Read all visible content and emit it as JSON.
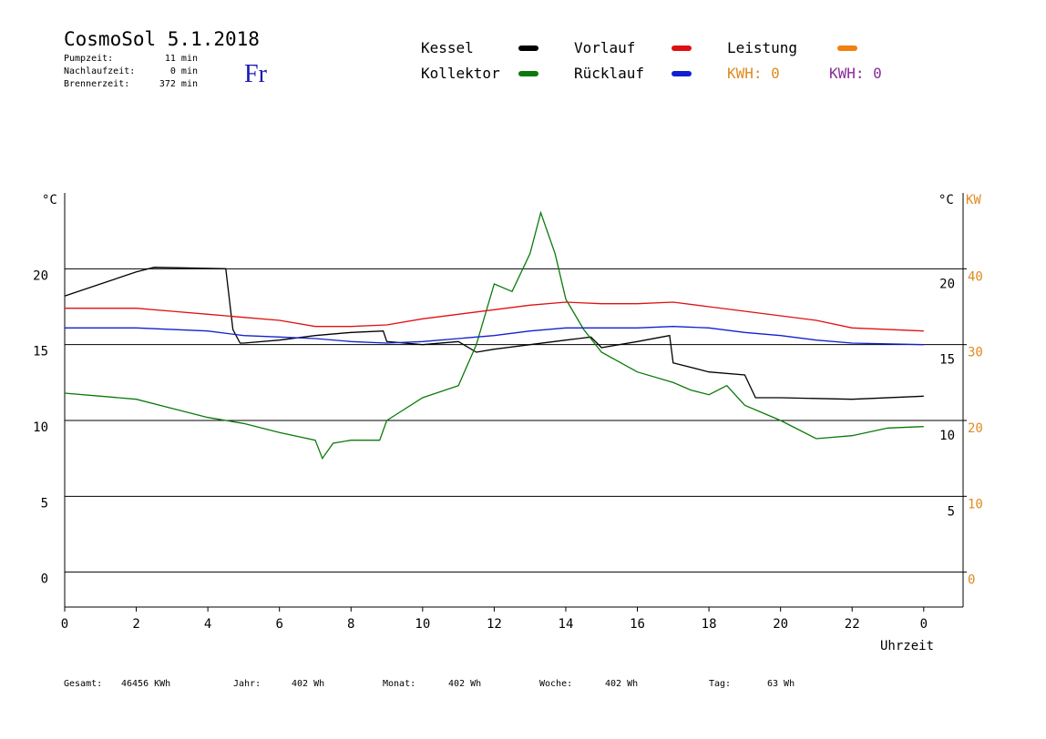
{
  "chart_data": {
    "type": "line",
    "title": "CosmoSol 5.1.2018",
    "weekday": "Fr",
    "stats": [
      {
        "label": "Pumpzeit:",
        "value": "11 min"
      },
      {
        "label": "Nachlaufzeit:",
        "value": "0 min"
      },
      {
        "label": "Brennerzeit:",
        "value": "372 min"
      }
    ],
    "ylabel": "°C",
    "y2label_celsius": "°C",
    "y2label": "KW",
    "xlabel": "Uhrzeit",
    "xlim": [
      0,
      25.1
    ],
    "xticks": [
      0,
      2,
      4,
      6,
      8,
      10,
      12,
      14,
      16,
      18,
      20,
      22,
      {
        "value": 24,
        "label": "0"
      }
    ],
    "ylim": [
      -2.3,
      25
    ],
    "yticks": [
      0,
      5,
      10,
      15,
      20
    ],
    "y2lim": [
      -4.6,
      50
    ],
    "y2ticks": [
      0,
      10,
      20,
      30,
      40
    ],
    "y2color": "#e08a1e",
    "grid": true,
    "series": [
      {
        "name": "Kessel",
        "color": "#000000",
        "x": [
          0,
          1,
          2,
          2.5,
          4.5,
          4.7,
          4.9,
          5,
          6,
          7,
          8,
          8.9,
          9,
          10,
          11,
          11.5,
          12,
          13,
          14,
          14.7,
          15,
          16,
          16.9,
          17,
          18,
          19,
          19.3,
          20,
          22,
          24
        ],
        "values": [
          18.2,
          19,
          19.8,
          20.1,
          20,
          16,
          15.1,
          15.1,
          15.3,
          15.6,
          15.8,
          15.9,
          15.2,
          15,
          15.2,
          14.5,
          14.7,
          15,
          15.3,
          15.5,
          14.8,
          15.2,
          15.6,
          13.8,
          13.2,
          13,
          11.5,
          11.5,
          11.4,
          11.6
        ]
      },
      {
        "name": "Kollektor",
        "color": "#0a7a0a",
        "x": [
          0,
          1,
          2,
          3,
          4,
          5,
          6,
          7,
          7.2,
          7.5,
          8,
          8.8,
          9,
          10,
          11,
          11.5,
          12,
          12.5,
          13,
          13.3,
          13.7,
          14,
          14.5,
          15,
          16,
          17,
          17.5,
          18,
          18.5,
          19,
          20,
          21,
          22,
          23,
          24
        ],
        "values": [
          11.8,
          11.6,
          11.4,
          10.8,
          10.2,
          9.8,
          9.2,
          8.7,
          7.5,
          8.5,
          8.7,
          8.7,
          10,
          11.5,
          12.3,
          15,
          19,
          18.5,
          21,
          23.7,
          21,
          18,
          16,
          14.5,
          13.2,
          12.5,
          12,
          11.7,
          12.3,
          11,
          10,
          8.8,
          9,
          9.5,
          9.6
        ]
      },
      {
        "name": "Vorlauf",
        "color": "#e01010",
        "x": [
          0,
          2,
          3,
          4,
          5,
          6,
          7,
          8,
          9,
          10,
          11,
          12,
          13,
          14,
          15,
          16,
          17,
          18,
          19,
          20,
          21,
          22,
          24
        ],
        "values": [
          17.4,
          17.4,
          17.2,
          17,
          16.8,
          16.6,
          16.2,
          16.2,
          16.3,
          16.7,
          17,
          17.3,
          17.6,
          17.8,
          17.7,
          17.7,
          17.8,
          17.5,
          17.2,
          16.9,
          16.6,
          16.1,
          15.9
        ]
      },
      {
        "name": "Rücklauf",
        "color": "#1020d0",
        "x": [
          0,
          2,
          4,
          5,
          6,
          7,
          8,
          9,
          10,
          11,
          12,
          13,
          14,
          15,
          16,
          17,
          18,
          19,
          20,
          21,
          22,
          24
        ],
        "values": [
          16.1,
          16.1,
          15.9,
          15.6,
          15.5,
          15.4,
          15.2,
          15.1,
          15.2,
          15.4,
          15.6,
          15.9,
          16.1,
          16.1,
          16.1,
          16.2,
          16.1,
          15.8,
          15.6,
          15.3,
          15.1,
          15
        ]
      },
      {
        "name": "Leistung",
        "color": "#f08010",
        "x": [],
        "values": []
      }
    ],
    "annotations": [
      {
        "text": "KWH: 0",
        "color": "#e08a1e"
      },
      {
        "text": "KWH: 0",
        "color": "#8a2a9a"
      }
    ],
    "totals": [
      {
        "label": "Gesamt:",
        "value": "46456 KWh"
      },
      {
        "label": "Jahr:",
        "value": "402 Wh"
      },
      {
        "label": "Monat:",
        "value": "402 Wh"
      },
      {
        "label": "Woche:",
        "value": "402 Wh"
      },
      {
        "label": "Tag:",
        "value": "63 Wh"
      }
    ]
  }
}
